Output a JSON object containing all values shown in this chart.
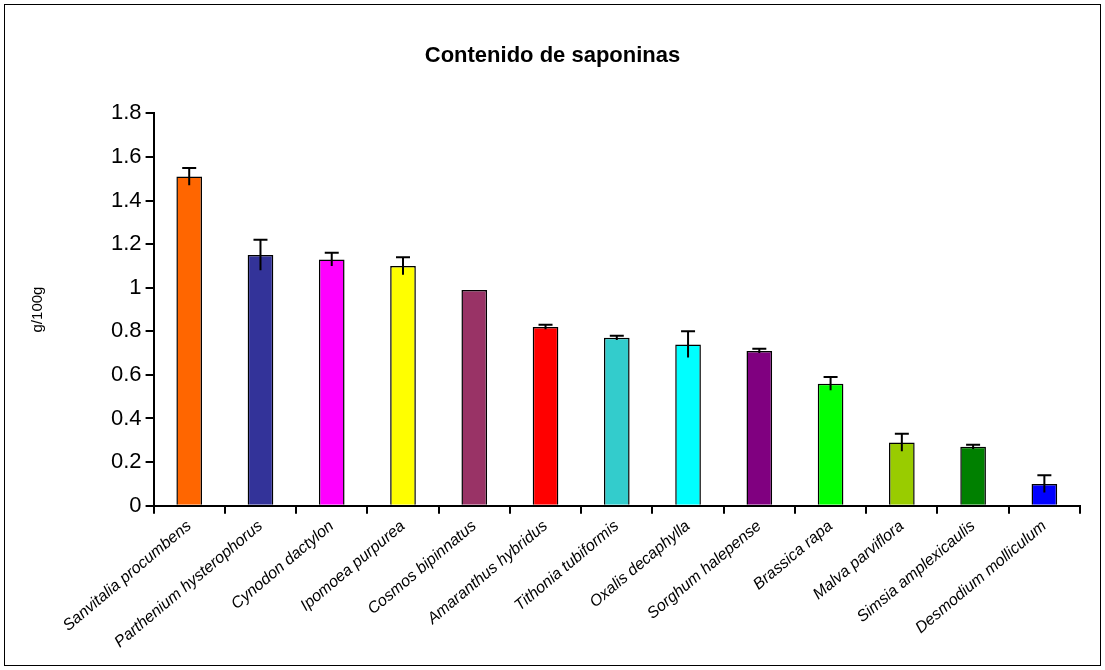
{
  "chart_data": {
    "type": "bar",
    "title": "Contenido de saponinas",
    "ylabel": "g/100g",
    "categories": [
      "Sanvitalia procumbens",
      "Parthenium hysterophorus",
      "Cynodon dactylon",
      "Ipomoea purpurea",
      "Cosmos bipinnatus",
      "Amaranthus hybridus",
      "Tithonia tubiformis",
      "Oxalis decaphylla",
      "Sorghum halepense",
      "Brassica rapa",
      "Malva parviflora",
      "Simsia amplexicaulis",
      "Desmodium molliculum"
    ],
    "values": [
      1.51,
      1.15,
      1.13,
      1.1,
      0.99,
      0.82,
      0.77,
      0.74,
      0.71,
      0.56,
      0.29,
      0.27,
      0.1
    ],
    "errors": [
      0.04,
      0.07,
      0.03,
      0.04,
      null,
      0.01,
      0.01,
      0.06,
      0.01,
      0.03,
      0.04,
      0.01,
      0.04
    ],
    "colors": [
      "#ff6600",
      "#333399",
      "#ff00ff",
      "#ffff00",
      "#993366",
      "#ff0000",
      "#33cccc",
      "#00ffff",
      "#800080",
      "#00ff00",
      "#99cc00",
      "#008000",
      "#0000ff"
    ],
    "ylim": [
      0,
      1.8
    ],
    "yticks": [
      0,
      0.2,
      0.4,
      0.6,
      0.8,
      1,
      1.2,
      1.4,
      1.6,
      1.8
    ],
    "grid": false,
    "legend": false
  }
}
